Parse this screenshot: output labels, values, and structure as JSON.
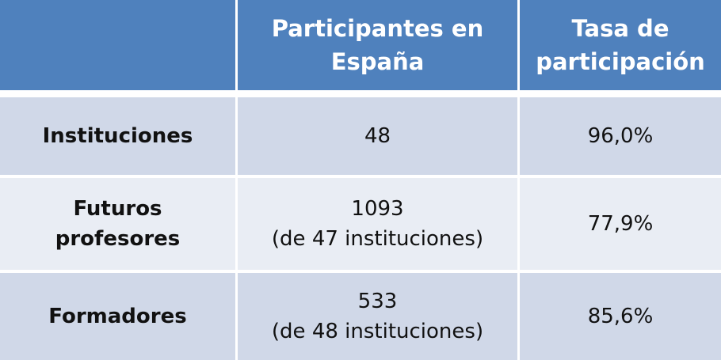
{
  "table": {
    "header": [
      [],
      [
        "Participantes en",
        "España"
      ],
      [
        "Tasa de",
        "participación"
      ]
    ],
    "rows": [
      [
        [
          "Instituciones"
        ],
        [
          "48"
        ],
        [
          "96,0%"
        ]
      ],
      [
        [
          "Futuros",
          "profesores"
        ],
        [
          "1093",
          "(de 47 instituciones)"
        ],
        [
          "77,9%"
        ]
      ],
      [
        [
          "Formadores"
        ],
        [
          "533",
          "(de 48 instituciones)"
        ],
        [
          "85,6%"
        ]
      ]
    ]
  }
}
